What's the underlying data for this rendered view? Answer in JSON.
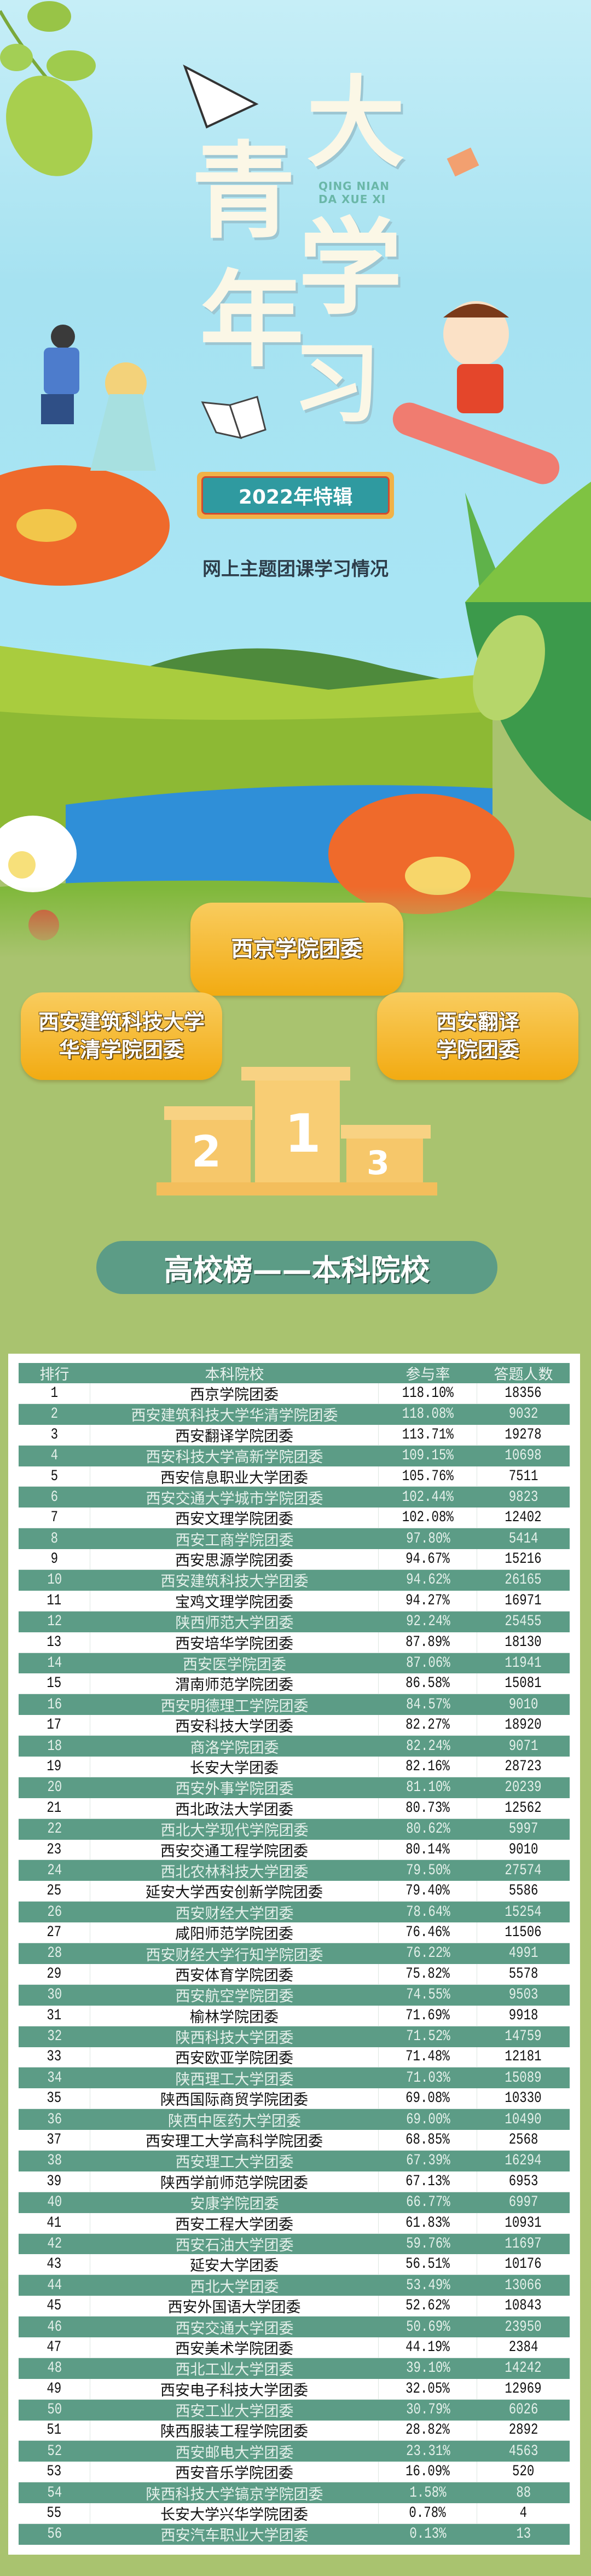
{
  "poster": {
    "title_chars": [
      "青",
      "年",
      "大",
      "学",
      "习"
    ],
    "pinyin_line1": "QING NIAN",
    "pinyin_line2": "DA XUE XI",
    "badge": "2022年特辑",
    "subtitle": "网上主题团课学习情况"
  },
  "podium": {
    "first": "西京学院团委",
    "second_line1": "西安建筑科技大学",
    "second_line2": "华清学院团委",
    "third_line1": "西安翻译",
    "third_line2": "学院团委",
    "num1": "1",
    "num2": "2",
    "num3": "3"
  },
  "section_title": "高校榜——本科院校",
  "colors": {
    "teal": "#5c9c86",
    "gold": "#f2ab12",
    "background_green": "#a9c36f",
    "sky": "#a6e2f1"
  },
  "table": {
    "headers": [
      "排行",
      "本科院校",
      "参与率",
      "答题人数"
    ],
    "rows": [
      [
        "1",
        "西京学院团委",
        "118.10%",
        "18356"
      ],
      [
        "2",
        "西安建筑科技大学华清学院团委",
        "118.08%",
        "9032"
      ],
      [
        "3",
        "西安翻译学院团委",
        "113.71%",
        "19278"
      ],
      [
        "4",
        "西安科技大学高新学院团委",
        "109.15%",
        "10698"
      ],
      [
        "5",
        "西安信息职业大学团委",
        "105.76%",
        "7511"
      ],
      [
        "6",
        "西安交通大学城市学院团委",
        "102.44%",
        "9823"
      ],
      [
        "7",
        "西安文理学院团委",
        "102.08%",
        "12402"
      ],
      [
        "8",
        "西安工商学院团委",
        "97.80%",
        "5414"
      ],
      [
        "9",
        "西安思源学院团委",
        "94.67%",
        "15216"
      ],
      [
        "10",
        "西安建筑科技大学团委",
        "94.62%",
        "26165"
      ],
      [
        "11",
        "宝鸡文理学院团委",
        "94.27%",
        "16971"
      ],
      [
        "12",
        "陕西师范大学团委",
        "92.24%",
        "25455"
      ],
      [
        "13",
        "西安培华学院团委",
        "87.89%",
        "18130"
      ],
      [
        "14",
        "西安医学院团委",
        "87.06%",
        "11941"
      ],
      [
        "15",
        "渭南师范学院团委",
        "86.58%",
        "15081"
      ],
      [
        "16",
        "西安明德理工学院团委",
        "84.57%",
        "9010"
      ],
      [
        "17",
        "西安科技大学团委",
        "82.27%",
        "18920"
      ],
      [
        "18",
        "商洛学院团委",
        "82.24%",
        "9071"
      ],
      [
        "19",
        "长安大学团委",
        "82.16%",
        "28723"
      ],
      [
        "20",
        "西安外事学院团委",
        "81.10%",
        "20239"
      ],
      [
        "21",
        "西北政法大学团委",
        "80.73%",
        "12562"
      ],
      [
        "22",
        "西北大学现代学院团委",
        "80.62%",
        "5997"
      ],
      [
        "23",
        "西安交通工程学院团委",
        "80.14%",
        "9010"
      ],
      [
        "24",
        "西北农林科技大学团委",
        "79.50%",
        "27574"
      ],
      [
        "25",
        "延安大学西安创新学院团委",
        "79.40%",
        "5586"
      ],
      [
        "26",
        "西安财经大学团委",
        "78.64%",
        "15254"
      ],
      [
        "27",
        "咸阳师范学院团委",
        "76.46%",
        "11506"
      ],
      [
        "28",
        "西安财经大学行知学院团委",
        "76.22%",
        "4991"
      ],
      [
        "29",
        "西安体育学院团委",
        "75.82%",
        "5578"
      ],
      [
        "30",
        "西安航空学院团委",
        "74.55%",
        "9503"
      ],
      [
        "31",
        "榆林学院团委",
        "71.69%",
        "9918"
      ],
      [
        "32",
        "陕西科技大学团委",
        "71.52%",
        "14759"
      ],
      [
        "33",
        "西安欧亚学院团委",
        "71.48%",
        "12181"
      ],
      [
        "34",
        "陕西理工大学团委",
        "71.03%",
        "15089"
      ],
      [
        "35",
        "陕西国际商贸学院团委",
        "69.08%",
        "10330"
      ],
      [
        "36",
        "陕西中医药大学团委",
        "69.00%",
        "10490"
      ],
      [
        "37",
        "西安理工大学高科学院团委",
        "68.85%",
        "2568"
      ],
      [
        "38",
        "西安理工大学团委",
        "67.39%",
        "16294"
      ],
      [
        "39",
        "陕西学前师范学院团委",
        "67.13%",
        "6953"
      ],
      [
        "40",
        "安康学院团委",
        "66.77%",
        "6997"
      ],
      [
        "41",
        "西安工程大学团委",
        "61.83%",
        "10931"
      ],
      [
        "42",
        "西安石油大学团委",
        "59.76%",
        "11697"
      ],
      [
        "43",
        "延安大学团委",
        "56.51%",
        "10176"
      ],
      [
        "44",
        "西北大学团委",
        "53.49%",
        "13066"
      ],
      [
        "45",
        "西安外国语大学团委",
        "52.62%",
        "10843"
      ],
      [
        "46",
        "西安交通大学团委",
        "50.69%",
        "23950"
      ],
      [
        "47",
        "西安美术学院团委",
        "44.19%",
        "2384"
      ],
      [
        "48",
        "西北工业大学团委",
        "39.10%",
        "14242"
      ],
      [
        "49",
        "西安电子科技大学团委",
        "32.05%",
        "12969"
      ],
      [
        "50",
        "西安工业大学团委",
        "30.79%",
        "6026"
      ],
      [
        "51",
        "陕西服装工程学院团委",
        "28.82%",
        "2892"
      ],
      [
        "52",
        "西安邮电大学团委",
        "23.31%",
        "4563"
      ],
      [
        "53",
        "西安音乐学院团委",
        "16.09%",
        "520"
      ],
      [
        "54",
        "陕西科技大学镐京学院团委",
        "1.58%",
        "88"
      ],
      [
        "55",
        "长安大学兴华学院团委",
        "0.78%",
        "4"
      ],
      [
        "56",
        "西安汽车职业大学团委",
        "0.13%",
        "13"
      ]
    ]
  }
}
